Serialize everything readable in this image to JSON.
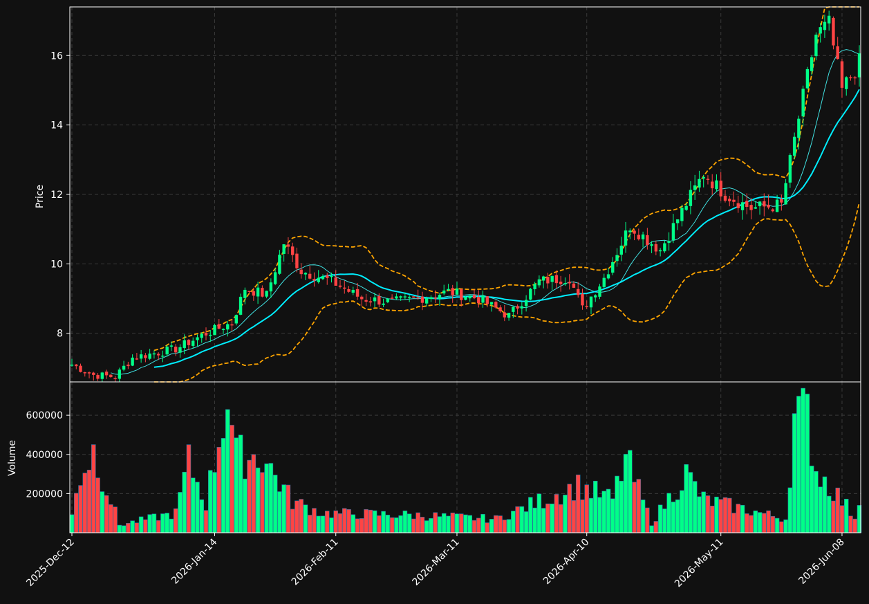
{
  "chart_data": {
    "type": "candlestick",
    "colors": {
      "background": "#111111",
      "up": "#00ff88",
      "down": "#ff4444",
      "ma_fast": "#40e0e0",
      "ma_slow": "#00eeff",
      "band": "#ffa500",
      "grid": "#3a3a3a",
      "text": "#ffffff"
    },
    "grid": true,
    "x_start": "2025-12-12",
    "x_end": "2026-06-12",
    "x_ticks": [
      "2025-Dec-12",
      "2026-Jan-14",
      "2026-Feb-11",
      "2026-Mar-11",
      "2026-Apr-10",
      "2026-May-11",
      "2026-Jun-08"
    ],
    "price_panel": {
      "ylabel": "Price",
      "ylim": [
        6.6,
        17.4
      ],
      "yticks": [
        "8",
        "10",
        "12",
        "14",
        "16"
      ]
    },
    "volume_panel": {
      "ylabel": "Volume",
      "ylim": [
        0,
        770000
      ],
      "yticks": [
        "200000",
        "400000",
        "600000"
      ]
    },
    "ohlc_anchors": [
      {
        "date": "2025-12-12",
        "close": 7.1
      },
      {
        "date": "2025-12-17",
        "close": 6.8
      },
      {
        "date": "2025-12-22",
        "close": 6.75
      },
      {
        "date": "2025-12-26",
        "close": 7.3
      },
      {
        "date": "2026-01-05",
        "close": 7.55
      },
      {
        "date": "2026-01-12",
        "close": 8.0
      },
      {
        "date": "2026-01-18",
        "close": 8.3
      },
      {
        "date": "2026-01-21",
        "close": 9.3
      },
      {
        "date": "2026-01-26",
        "close": 9.1
      },
      {
        "date": "2026-01-30",
        "close": 10.6
      },
      {
        "date": "2026-02-03",
        "close": 9.8
      },
      {
        "date": "2026-02-10",
        "close": 9.5
      },
      {
        "date": "2026-02-17",
        "close": 9.0
      },
      {
        "date": "2026-02-24",
        "close": 8.9
      },
      {
        "date": "2026-03-02",
        "close": 9.0
      },
      {
        "date": "2026-03-09",
        "close": 9.2
      },
      {
        "date": "2026-03-16",
        "close": 9.0
      },
      {
        "date": "2026-03-23",
        "close": 8.5
      },
      {
        "date": "2026-03-30",
        "close": 9.5
      },
      {
        "date": "2026-04-06",
        "close": 9.6
      },
      {
        "date": "2026-04-09",
        "close": 8.7
      },
      {
        "date": "2026-04-14",
        "close": 9.6
      },
      {
        "date": "2026-04-20",
        "close": 11.1
      },
      {
        "date": "2026-04-27",
        "close": 10.4
      },
      {
        "date": "2026-05-01",
        "close": 11.3
      },
      {
        "date": "2026-05-07",
        "close": 12.6
      },
      {
        "date": "2026-05-12",
        "close": 12.0
      },
      {
        "date": "2026-05-18",
        "close": 11.6
      },
      {
        "date": "2026-05-25",
        "close": 11.7
      },
      {
        "date": "2026-05-29",
        "close": 14.2
      },
      {
        "date": "2026-06-02",
        "close": 16.6
      },
      {
        "date": "2026-06-05",
        "close": 16.9
      },
      {
        "date": "2026-06-08",
        "close": 15.0
      },
      {
        "date": "2026-06-12",
        "close": 15.8
      }
    ],
    "volume_anchors": [
      {
        "date": "2025-12-12",
        "volume": 90000
      },
      {
        "date": "2025-12-13",
        "volume": 240000
      },
      {
        "date": "2025-12-17",
        "volume": 420000
      },
      {
        "date": "2025-12-23",
        "volume": 40000
      },
      {
        "date": "2026-01-05",
        "volume": 100000
      },
      {
        "date": "2026-01-08",
        "volume": 360000
      },
      {
        "date": "2026-01-12",
        "volume": 150000
      },
      {
        "date": "2026-01-17",
        "volume": 700000
      },
      {
        "date": "2026-01-19",
        "volume": 390000
      },
      {
        "date": "2026-01-25",
        "volume": 390000
      },
      {
        "date": "2026-02-01",
        "volume": 160000
      },
      {
        "date": "2026-02-08",
        "volume": 100000
      },
      {
        "date": "2026-03-01",
        "volume": 90000
      },
      {
        "date": "2026-03-20",
        "volume": 70000
      },
      {
        "date": "2026-04-08",
        "volume": 240000
      },
      {
        "date": "2026-04-16",
        "volume": 170000
      },
      {
        "date": "2026-04-19",
        "volume": 380000
      },
      {
        "date": "2026-04-25",
        "volume": 50000
      },
      {
        "date": "2026-05-03",
        "volume": 300000
      },
      {
        "date": "2026-05-07",
        "volume": 170000
      },
      {
        "date": "2026-05-26",
        "volume": 70000
      },
      {
        "date": "2026-05-28",
        "volume": 580000
      },
      {
        "date": "2026-05-31",
        "volume": 600000
      },
      {
        "date": "2026-06-02",
        "volume": 320000
      },
      {
        "date": "2026-06-06",
        "volume": 220000
      },
      {
        "date": "2026-06-11",
        "volume": 80000
      },
      {
        "date": "2026-06-12",
        "volume": 170000
      }
    ],
    "ma_fast_period": 10,
    "ma_slow_period": 20,
    "band_period": 20,
    "band_std": 2
  }
}
